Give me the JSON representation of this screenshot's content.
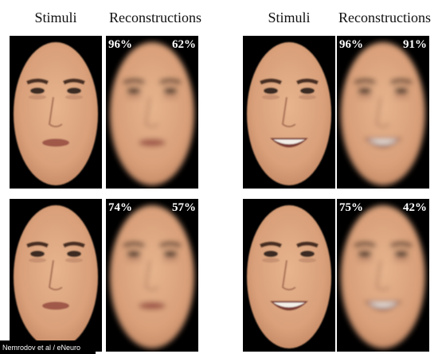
{
  "headers": [
    {
      "stimuli": "Stimuli",
      "reconstructions": "Reconstructions"
    },
    {
      "stimuli": "Stimuli",
      "reconstructions": "Reconstructions"
    }
  ],
  "panels": [
    {
      "left": "96%",
      "right": "62%"
    },
    {
      "left": "96%",
      "right": "91%"
    },
    {
      "left": "74%",
      "right": "57%"
    },
    {
      "left": "75%",
      "right": "42%"
    }
  ],
  "credit": "Nemrodov et al / eNeuro"
}
